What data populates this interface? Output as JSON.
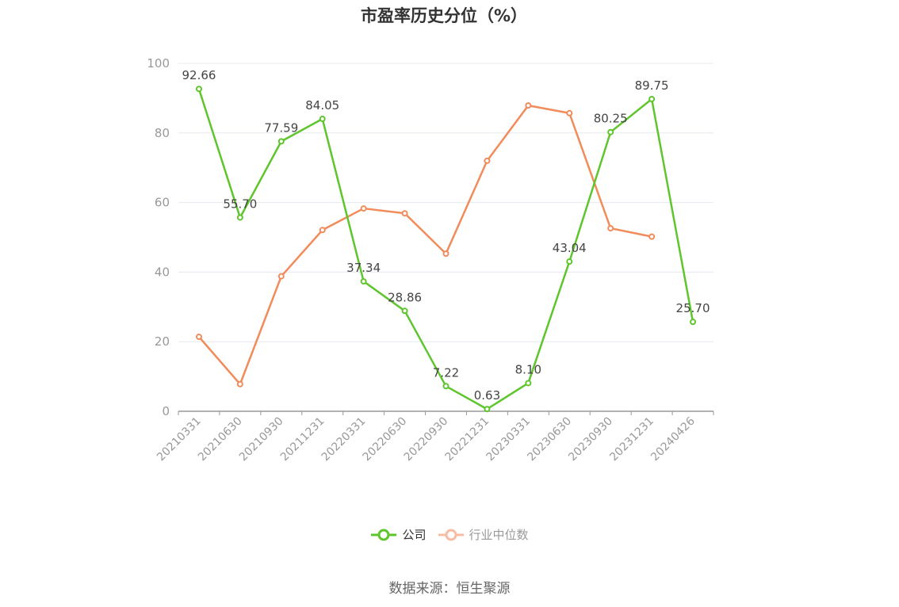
{
  "title": "市盈率历史分位（%）",
  "source": "数据来源：恒生聚源",
  "colors": {
    "company": "#5ec52c",
    "industry": "#f28b5a",
    "industry_legend": "#f7bca4"
  },
  "chart_data": {
    "type": "line",
    "title": "市盈率历史分位（%）",
    "categories": [
      "20210331",
      "20210630",
      "20210930",
      "20211231",
      "20220331",
      "20220630",
      "20220930",
      "20221231",
      "20230331",
      "20230630",
      "20230930",
      "20231231",
      "20240426"
    ],
    "ylim": [
      0,
      100
    ],
    "yticks": [
      0,
      20,
      40,
      60,
      80,
      100
    ],
    "grid": true,
    "legend_position": "bottom",
    "series": [
      {
        "name": "公司",
        "values": [
          92.66,
          55.7,
          77.59,
          84.05,
          37.34,
          28.86,
          7.22,
          0.63,
          8.1,
          43.04,
          80.25,
          89.75,
          25.7
        ],
        "labels": [
          "92.66",
          "55.70",
          "77.59",
          "84.05",
          "37.34",
          "28.86",
          "7.22",
          "0.63",
          "8.10",
          "43.04",
          "80.25",
          "89.75",
          "25.70"
        ]
      },
      {
        "name": "行业中位数",
        "values": [
          21.4,
          7.8,
          38.8,
          52.1,
          58.3,
          56.9,
          45.3,
          72.0,
          87.9,
          85.7,
          52.6,
          50.2,
          null
        ]
      }
    ]
  }
}
